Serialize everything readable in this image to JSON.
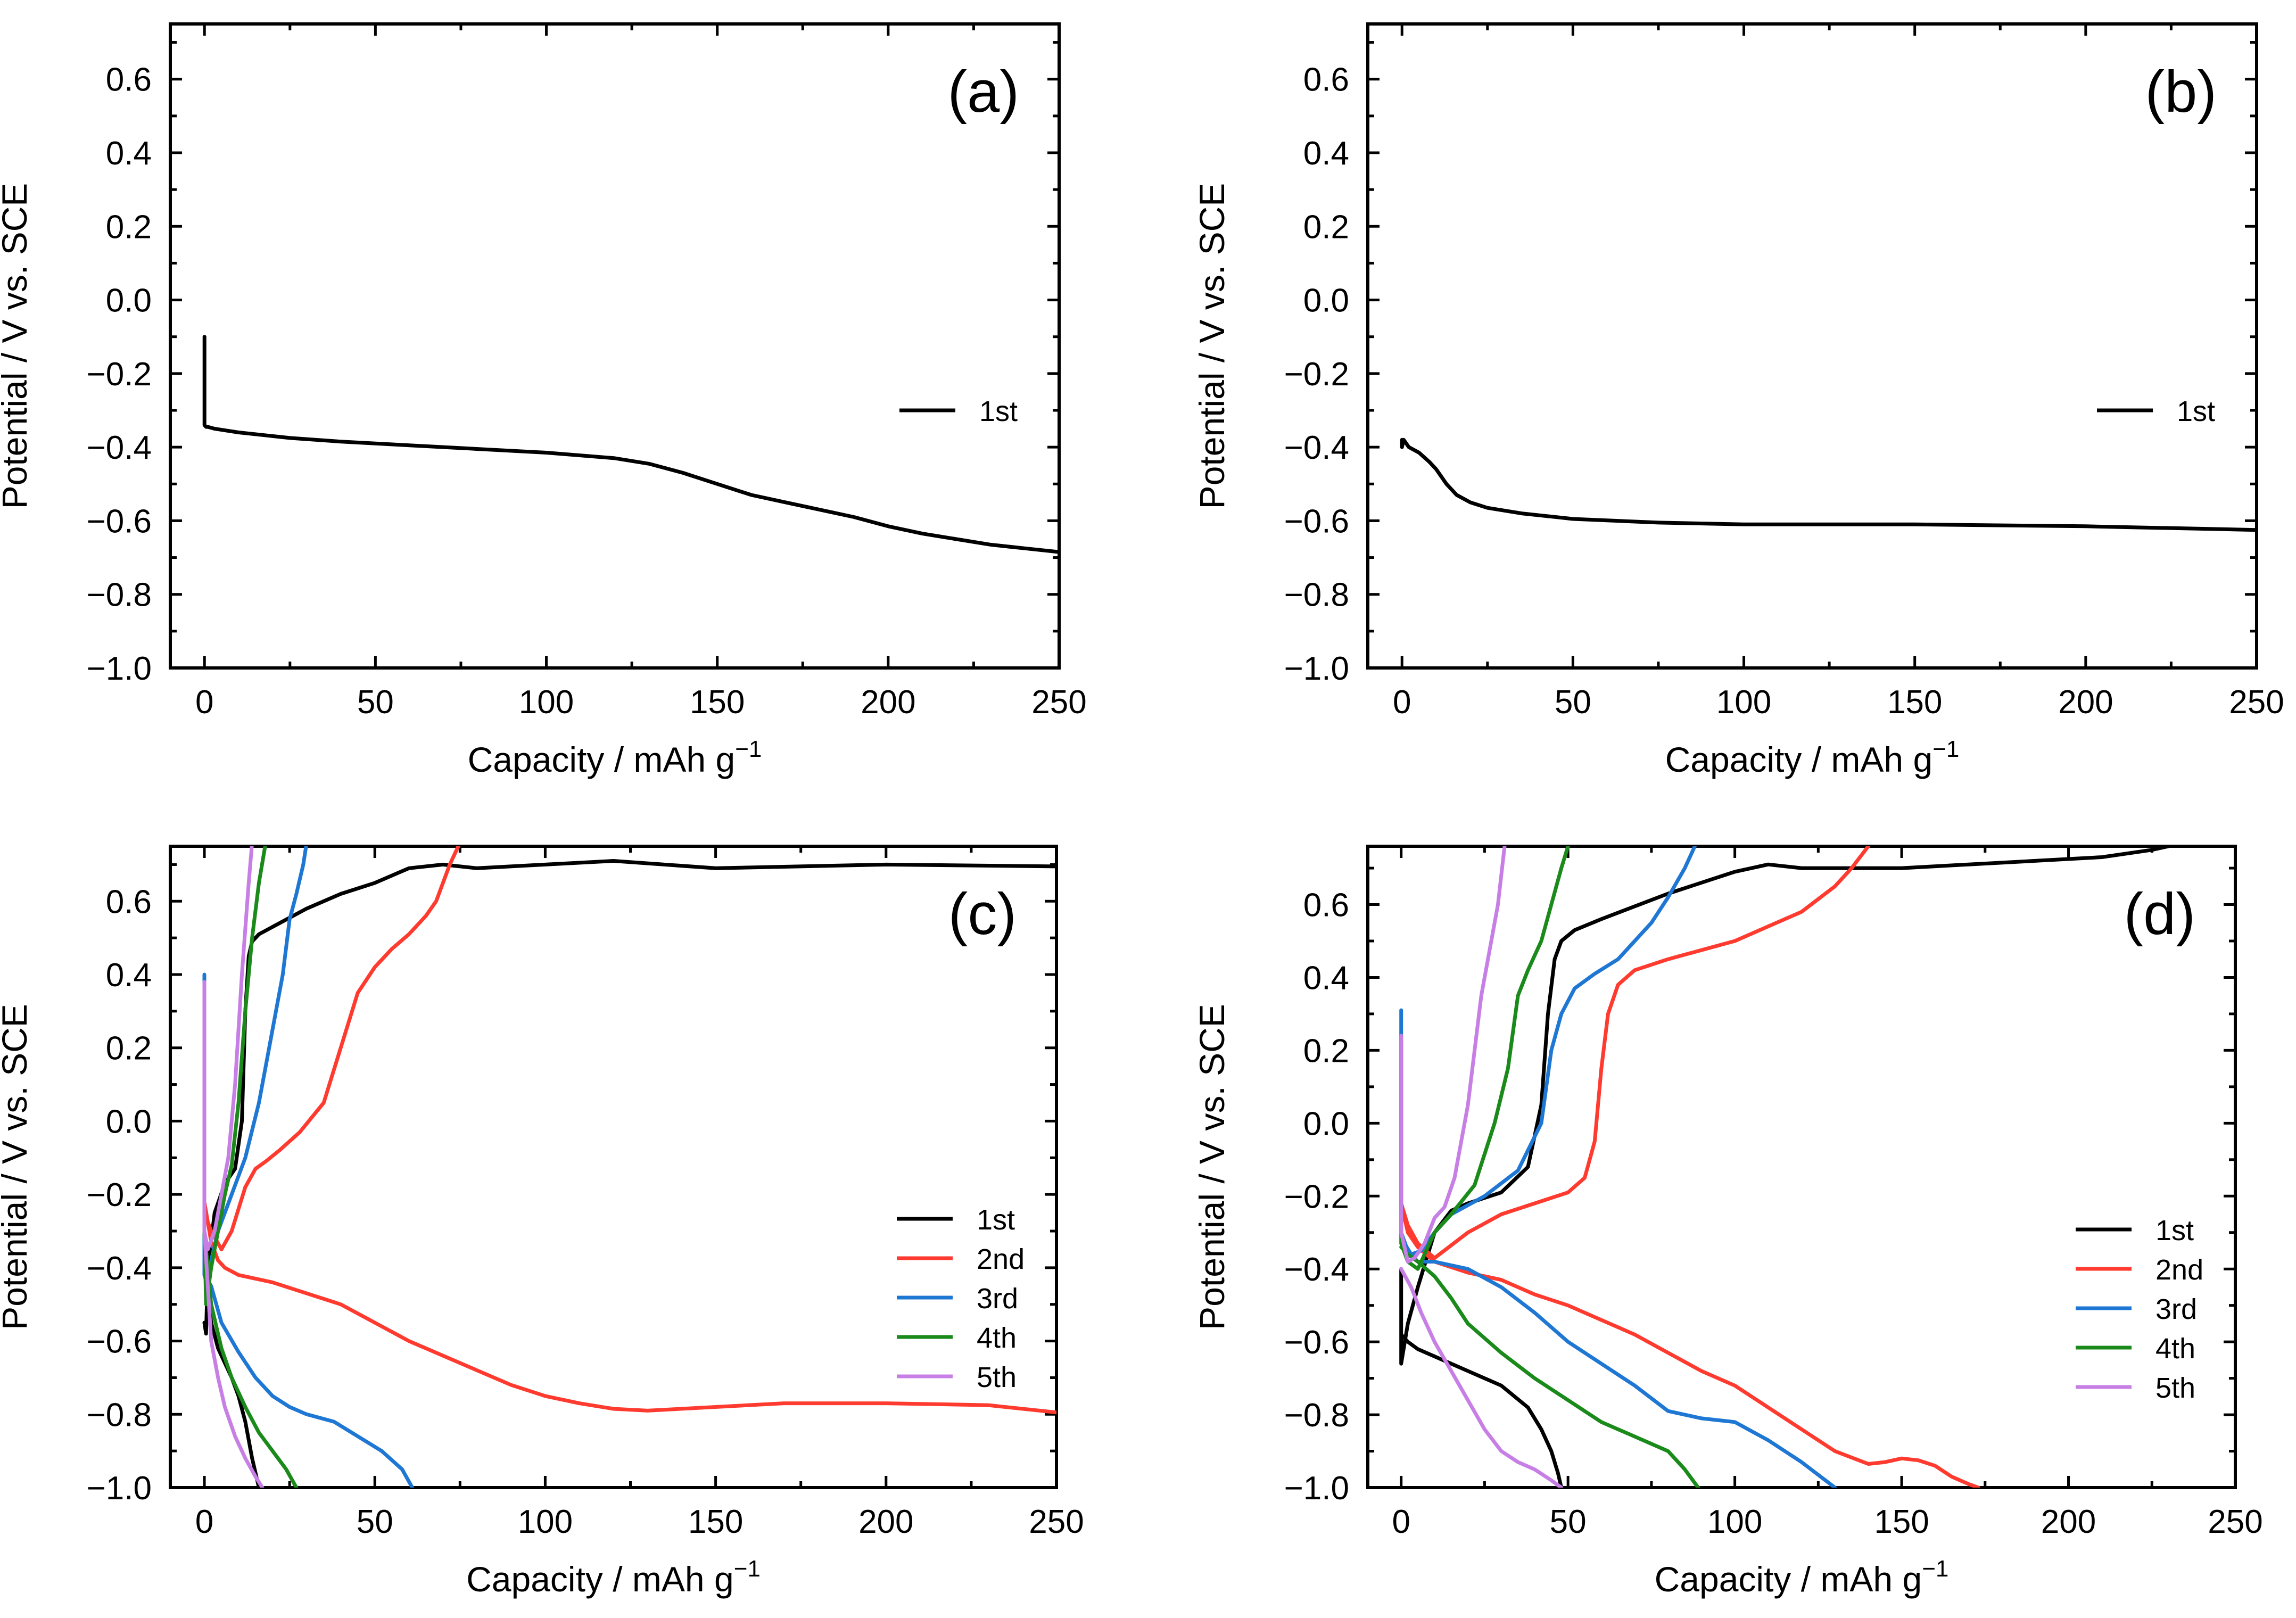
{
  "chart_data": [
    {
      "panel": "(a)",
      "type": "line",
      "xlabel": "Capacity / mAh g",
      "xlabel_sup": "−1",
      "ylabel": "Potential / V vs. SCE",
      "xlim": [
        -10,
        250
      ],
      "ylim": [
        -1.0,
        0.75
      ],
      "xticks": [
        "0",
        "50",
        "100",
        "150",
        "200",
        "250"
      ],
      "yticks": [
        "−1.0",
        "−0.8",
        "−0.6",
        "−0.4",
        "−0.2",
        "0.0",
        "0.2",
        "0.4",
        "0.6"
      ],
      "legend_position": "center-right",
      "series": [
        {
          "name": "1st",
          "color": "#000000",
          "x": [
            0,
            0,
            0.5,
            1,
            3,
            10,
            25,
            40,
            60,
            80,
            100,
            120,
            130,
            140,
            150,
            160,
            170,
            180,
            190,
            200,
            210,
            220,
            230,
            240,
            250
          ],
          "y": [
            -0.1,
            -0.34,
            -0.345,
            -0.345,
            -0.35,
            -0.36,
            -0.375,
            -0.385,
            -0.395,
            -0.405,
            -0.415,
            -0.43,
            -0.445,
            -0.47,
            -0.5,
            -0.53,
            -0.55,
            -0.57,
            -0.59,
            -0.615,
            -0.635,
            -0.65,
            -0.665,
            -0.675,
            -0.685
          ]
        }
      ]
    },
    {
      "panel": "(b)",
      "type": "line",
      "xlabel": "Capacity / mAh g",
      "xlabel_sup": "−1",
      "ylabel": "Potential / V vs. SCE",
      "xlim": [
        -10,
        250
      ],
      "ylim": [
        -1.0,
        0.75
      ],
      "xticks": [
        "0",
        "50",
        "100",
        "150",
        "200",
        "250"
      ],
      "yticks": [
        "−1.0",
        "−0.8",
        "−0.6",
        "−0.4",
        "−0.2",
        "0.0",
        "0.2",
        "0.4",
        "0.6"
      ],
      "legend_position": "center-right",
      "series": [
        {
          "name": "1st",
          "color": "#000000",
          "x": [
            0,
            0,
            0.5,
            2,
            5,
            8,
            10,
            13,
            16,
            20,
            25,
            35,
            50,
            75,
            100,
            150,
            200,
            250
          ],
          "y": [
            -0.38,
            -0.4,
            -0.38,
            -0.4,
            -0.415,
            -0.44,
            -0.46,
            -0.5,
            -0.53,
            -0.55,
            -0.565,
            -0.58,
            -0.595,
            -0.605,
            -0.61,
            -0.61,
            -0.615,
            -0.625
          ]
        }
      ]
    },
    {
      "panel": "(c)",
      "type": "line",
      "xlabel": "Capacity / mAh g",
      "xlabel_sup": "−1",
      "ylabel": "Potential / V vs. SCE",
      "xlim": [
        -10,
        250
      ],
      "ylim": [
        -1.0,
        0.75
      ],
      "xticks": [
        "0",
        "50",
        "100",
        "150",
        "200",
        "250"
      ],
      "yticks": [
        "−1.0",
        "−0.8",
        "−0.6",
        "−0.4",
        "−0.2",
        "0.0",
        "0.2",
        "0.4",
        "0.6"
      ],
      "legend_position": "bottom-right",
      "series": [
        {
          "name": "1st",
          "color": "#000000",
          "x": [
            0,
            0.5,
            1,
            3,
            6,
            9,
            11,
            12,
            13,
            14,
            16,
            20,
            30,
            40,
            50,
            60,
            70,
            80,
            100,
            120,
            150,
            200,
            250,
            null,
            0,
            2,
            4,
            6,
            8,
            10,
            12,
            14,
            16
          ],
          "y": [
            -0.55,
            -0.58,
            -0.4,
            -0.25,
            -0.17,
            -0.13,
            0.0,
            0.3,
            0.45,
            0.49,
            0.51,
            0.53,
            0.58,
            0.62,
            0.65,
            0.69,
            0.7,
            0.69,
            0.7,
            0.71,
            0.69,
            0.7,
            0.695,
            null,
            -0.4,
            -0.55,
            -0.62,
            -0.66,
            -0.7,
            -0.75,
            -0.82,
            -0.92,
            -1.0
          ]
        },
        {
          "name": "2nd",
          "color": "#ff3b30",
          "x": [
            0,
            2,
            5,
            8,
            12,
            15,
            18,
            22,
            28,
            35,
            40,
            45,
            50,
            55,
            60,
            65,
            68,
            72,
            75,
            null,
            0,
            2,
            4,
            6,
            10,
            20,
            30,
            40,
            50,
            60,
            70,
            80,
            90,
            100,
            110,
            120,
            130,
            150,
            170,
            200,
            230,
            250
          ],
          "y": [
            -0.25,
            -0.3,
            -0.35,
            -0.3,
            -0.18,
            -0.13,
            -0.11,
            -0.08,
            -0.03,
            0.05,
            0.2,
            0.35,
            0.42,
            0.47,
            0.51,
            0.56,
            0.6,
            0.7,
            0.76,
            null,
            -0.22,
            -0.33,
            -0.38,
            -0.4,
            -0.42,
            -0.44,
            -0.47,
            -0.5,
            -0.55,
            -0.6,
            -0.64,
            -0.68,
            -0.72,
            -0.75,
            -0.77,
            -0.785,
            -0.79,
            -0.78,
            -0.77,
            -0.77,
            -0.775,
            -0.795
          ]
        },
        {
          "name": "3rd",
          "color": "#1f77d4",
          "x": [
            0,
            0,
            1,
            2,
            4,
            6,
            8,
            12,
            16,
            20,
            23,
            25,
            27,
            29,
            30,
            null,
            0,
            2,
            5,
            10,
            15,
            20,
            25,
            30,
            38,
            45,
            52,
            58,
            61
          ],
          "y": [
            0.4,
            -0.42,
            -0.45,
            -0.38,
            -0.3,
            -0.25,
            -0.2,
            -0.1,
            0.05,
            0.25,
            0.4,
            0.55,
            0.62,
            0.7,
            0.76,
            null,
            -0.42,
            -0.45,
            -0.55,
            -0.63,
            -0.7,
            -0.75,
            -0.78,
            -0.8,
            -0.82,
            -0.86,
            -0.9,
            -0.95,
            -1.0
          ]
        },
        {
          "name": "4th",
          "color": "#1a8a1a",
          "x": [
            0,
            0.5,
            2,
            4,
            6,
            8,
            10,
            12,
            14,
            16,
            18,
            null,
            0,
            2,
            5,
            8,
            12,
            16,
            20,
            24,
            27
          ],
          "y": [
            -0.3,
            -0.5,
            -0.4,
            -0.3,
            -0.2,
            -0.12,
            0.05,
            0.3,
            0.5,
            0.65,
            0.76,
            null,
            -0.3,
            -0.5,
            -0.62,
            -0.7,
            -0.78,
            -0.85,
            -0.9,
            -0.95,
            -1.0
          ]
        },
        {
          "name": "5th",
          "color": "#c77fe6",
          "x": [
            0,
            0,
            1,
            3,
            5,
            7,
            9,
            11,
            13,
            14,
            null,
            0,
            2,
            4,
            6,
            9,
            12,
            15,
            17
          ],
          "y": [
            0.38,
            -0.3,
            -0.35,
            -0.3,
            -0.2,
            -0.1,
            0.1,
            0.4,
            0.65,
            0.76,
            null,
            -0.3,
            -0.6,
            -0.7,
            -0.78,
            -0.86,
            -0.92,
            -0.97,
            -1.0
          ]
        }
      ]
    },
    {
      "panel": "(d)",
      "type": "line",
      "xlabel": "Capacity / mAh g",
      "xlabel_sup": "−1",
      "ylabel": "Potential / V vs. SCE",
      "xlim": [
        -10,
        250
      ],
      "ylim": [
        -1.0,
        0.76
      ],
      "xticks": [
        "0",
        "50",
        "100",
        "150",
        "200",
        "250"
      ],
      "yticks": [
        "−1.0",
        "−0.8",
        "−0.6",
        "−0.4",
        "−0.2",
        "0.0",
        "0.2",
        "0.4",
        "0.6"
      ],
      "legend_position": "bottom-right",
      "series": [
        {
          "name": "1st",
          "color": "#000000",
          "x": [
            0,
            0,
            2,
            5,
            10,
            15,
            20,
            30,
            38,
            42,
            44,
            46,
            48,
            52,
            60,
            80,
            100,
            110,
            120,
            130,
            150,
            170,
            190,
            210,
            225,
            230,
            null,
            0,
            2,
            5,
            10,
            20,
            30,
            38,
            42,
            45,
            47,
            48
          ],
          "y": [
            -0.4,
            -0.66,
            -0.55,
            -0.45,
            -0.3,
            -0.24,
            -0.22,
            -0.19,
            -0.12,
            0.05,
            0.3,
            0.45,
            0.5,
            0.53,
            0.56,
            0.63,
            0.69,
            0.71,
            0.7,
            0.7,
            0.7,
            0.71,
            0.72,
            0.73,
            0.75,
            0.76,
            null,
            -0.58,
            -0.6,
            -0.62,
            -0.64,
            -0.68,
            -0.72,
            -0.78,
            -0.84,
            -0.9,
            -0.96,
            -1.0
          ]
        },
        {
          "name": "2nd",
          "color": "#ff3b30",
          "x": [
            0,
            2,
            5,
            10,
            20,
            30,
            40,
            50,
            55,
            58,
            60,
            62,
            65,
            70,
            80,
            100,
            110,
            120,
            130,
            135,
            140,
            null,
            0,
            2,
            5,
            10,
            20,
            30,
            40,
            50,
            60,
            70,
            80,
            90,
            100,
            110,
            120,
            130,
            140,
            145,
            150,
            155,
            160,
            165,
            170,
            173
          ],
          "y": [
            -0.22,
            -0.28,
            -0.33,
            -0.37,
            -0.3,
            -0.25,
            -0.22,
            -0.19,
            -0.15,
            -0.05,
            0.15,
            0.3,
            0.38,
            0.42,
            0.45,
            0.5,
            0.54,
            0.58,
            0.65,
            0.7,
            0.76,
            null,
            -0.22,
            -0.3,
            -0.34,
            -0.38,
            -0.41,
            -0.43,
            -0.47,
            -0.5,
            -0.54,
            -0.58,
            -0.63,
            -0.68,
            -0.72,
            -0.78,
            -0.84,
            -0.9,
            -0.935,
            -0.93,
            -0.92,
            -0.925,
            -0.94,
            -0.97,
            -0.99,
            -1.0
          ]
        },
        {
          "name": "3rd",
          "color": "#1f77d4",
          "x": [
            0,
            0,
            1,
            3,
            6,
            10,
            15,
            25,
            35,
            42,
            45,
            48,
            52,
            58,
            65,
            75,
            80,
            85,
            88,
            null,
            0,
            2,
            5,
            10,
            20,
            30,
            40,
            50,
            60,
            70,
            80,
            90,
            100,
            110,
            120,
            130
          ],
          "y": [
            0.31,
            -0.3,
            -0.33,
            -0.36,
            -0.35,
            -0.3,
            -0.25,
            -0.2,
            -0.13,
            0.0,
            0.2,
            0.3,
            0.37,
            0.41,
            0.45,
            0.55,
            0.62,
            0.7,
            0.76,
            null,
            -0.3,
            -0.35,
            -0.38,
            -0.38,
            -0.4,
            -0.45,
            -0.52,
            -0.6,
            -0.66,
            -0.72,
            -0.79,
            -0.81,
            -0.82,
            -0.87,
            -0.93,
            -1.0
          ]
        },
        {
          "name": "4th",
          "color": "#1a8a1a",
          "x": [
            0,
            0,
            2,
            5,
            10,
            15,
            22,
            28,
            32,
            35,
            38,
            42,
            45,
            48,
            50,
            null,
            0,
            2,
            5,
            10,
            15,
            20,
            30,
            40,
            50,
            60,
            70,
            80,
            85,
            89
          ],
          "y": [
            0.24,
            -0.33,
            -0.38,
            -0.4,
            -0.3,
            -0.25,
            -0.17,
            0.0,
            0.15,
            0.35,
            0.42,
            0.5,
            0.6,
            0.7,
            0.76,
            null,
            -0.34,
            -0.36,
            -0.38,
            -0.42,
            -0.48,
            -0.55,
            -0.63,
            -0.7,
            -0.76,
            -0.82,
            -0.86,
            -0.9,
            -0.95,
            -1.0
          ]
        },
        {
          "name": "5th",
          "color": "#c77fe6",
          "x": [
            0,
            0,
            2,
            4,
            7,
            10,
            13,
            16,
            20,
            24,
            27,
            29,
            31,
            null,
            0,
            3,
            6,
            10,
            15,
            20,
            25,
            30,
            35,
            40,
            45,
            48
          ],
          "y": [
            0.24,
            -0.3,
            -0.38,
            -0.37,
            -0.33,
            -0.26,
            -0.23,
            -0.15,
            0.05,
            0.35,
            0.5,
            0.6,
            0.76,
            null,
            -0.4,
            -0.45,
            -0.52,
            -0.6,
            -0.68,
            -0.76,
            -0.84,
            -0.9,
            -0.93,
            -0.95,
            -0.98,
            -1.0
          ]
        }
      ]
    }
  ]
}
